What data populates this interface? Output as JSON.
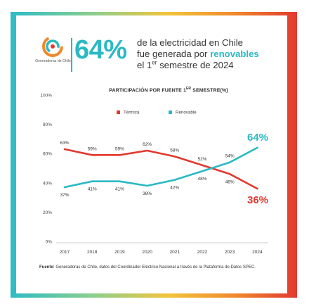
{
  "header": {
    "logo_text": "Generadoras de Chile",
    "big_value": "64%",
    "line1": "de la electricidad en Chile",
    "line2_prefix": "fue generada por",
    "line2_highlight": "renovables",
    "line3_prefix": "el 1",
    "line3_sup": "er",
    "line3_suffix": "semestre de 2024"
  },
  "chart_data": {
    "type": "line",
    "title_main": "PARTICIPACIÓN POR FUENTE 1",
    "title_sup": "ER",
    "title_tail": " SEMESTRE(%)",
    "categories": [
      "2017",
      "2018",
      "2019",
      "2020",
      "2021",
      "2022",
      "2023",
      "2024"
    ],
    "ylim": [
      0,
      100
    ],
    "y_ticks": [
      0,
      20,
      40,
      60,
      80,
      100
    ],
    "y_tick_labels": [
      "0%",
      "20%",
      "40%",
      "60%",
      "80%",
      "100%"
    ],
    "legend_position": "top",
    "series": [
      {
        "name": "Térmica",
        "color": "#e2392f",
        "values": [
          63,
          59,
          59,
          62,
          58,
          52,
          46,
          36
        ],
        "labels": [
          "63%",
          "59%",
          "59%",
          "62%",
          "58%",
          "52%",
          "46%",
          "36%"
        ]
      },
      {
        "name": "Renovable",
        "color": "#2bb9c4",
        "values": [
          37,
          41,
          41,
          38,
          42,
          48,
          54,
          64
        ],
        "labels": [
          "37%",
          "41%",
          "41%",
          "38%",
          "42%",
          "48%",
          "54%",
          "64%"
        ]
      }
    ]
  },
  "source": {
    "label": "Fuente:",
    "text": " Generadoras de Chile, datos del Coordinador Eléctrico Nacional a través de la Plataforma de Datos SPEC."
  }
}
